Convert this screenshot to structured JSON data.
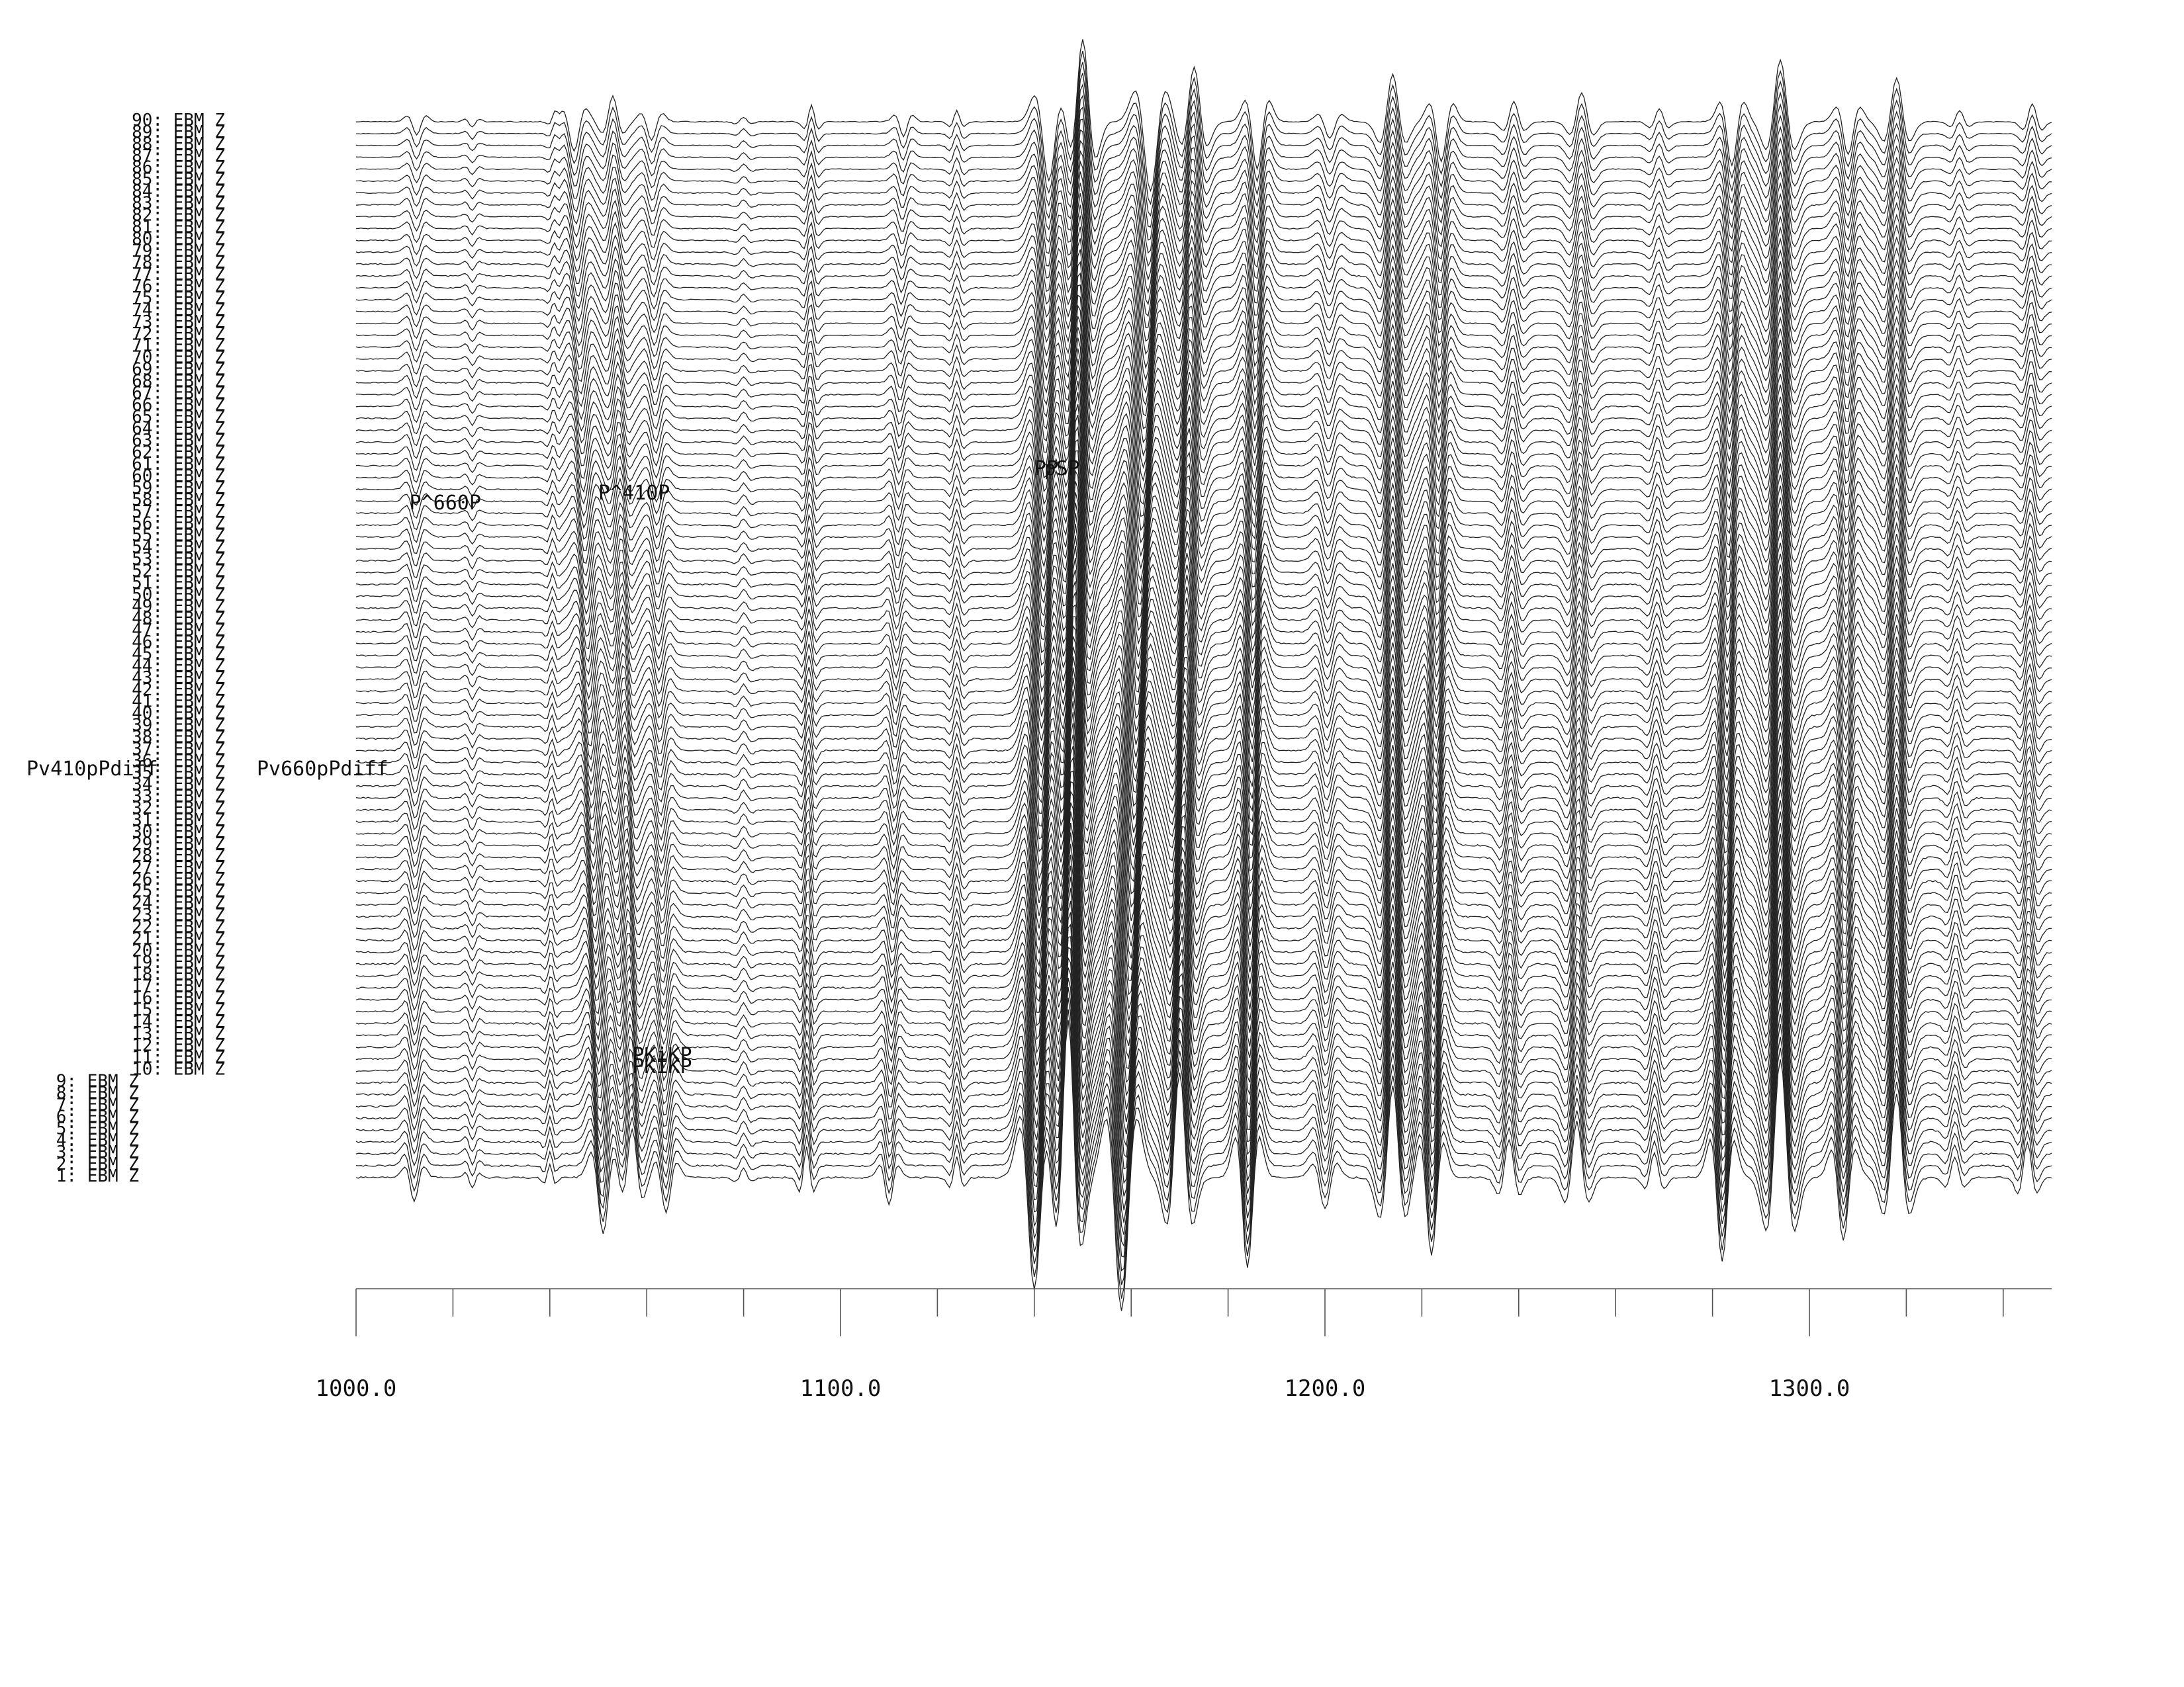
{
  "chart_data": {
    "type": "line",
    "title": "",
    "xlabel": "",
    "ylabel": "",
    "x_range": [
      1000.0,
      1350.0
    ],
    "x_tick_labels": [
      "1000.0",
      "1100.0",
      "1200.0",
      "1300.0"
    ],
    "x_major_ticks": [
      1000,
      1100,
      1200,
      1300
    ],
    "x_minor_tick_step": 20,
    "grid": false,
    "legend": "none",
    "trace_count": 90,
    "trace_label_suffix": ": EBM Z",
    "trace_labels": [
      "1: EBM Z",
      "2: EBM Z",
      "3: EBM Z",
      "4: EBM Z",
      "5: EBM Z",
      "6: EBM Z",
      "7: EBM Z",
      "8: EBM Z",
      "9: EBM Z",
      "10: EBM Z",
      "11: EBM Z",
      "12: EBM Z",
      "13: EBM Z",
      "14: EBM Z",
      "15: EBM Z",
      "16: EBM Z",
      "17: EBM Z",
      "18: EBM Z",
      "19: EBM Z",
      "20: EBM Z",
      "21: EBM Z",
      "22: EBM Z",
      "23: EBM Z",
      "24: EBM Z",
      "25: EBM Z",
      "26: EBM Z",
      "27: EBM Z",
      "28: EBM Z",
      "29: EBM Z",
      "30: EBM Z",
      "31: EBM Z",
      "32: EBM Z",
      "33: EBM Z",
      "34: EBM Z",
      "35: EBM Z",
      "36: EBM Z",
      "37: EBM Z",
      "38: EBM Z",
      "39: EBM Z",
      "40: EBM Z",
      "41: EBM Z",
      "42: EBM Z",
      "43: EBM Z",
      "44: EBM Z",
      "45: EBM Z",
      "46: EBM Z",
      "47: EBM Z",
      "48: EBM Z",
      "49: EBM Z",
      "50: EBM Z",
      "51: EBM Z",
      "52: EBM Z",
      "53: EBM Z",
      "54: EBM Z",
      "55: EBM Z",
      "56: EBM Z",
      "57: EBM Z",
      "58: EBM Z",
      "59: EBM Z",
      "60: EBM Z",
      "61: EBM Z",
      "62: EBM Z",
      "63: EBM Z",
      "64: EBM Z",
      "65: EBM Z",
      "66: EBM Z",
      "67: EBM Z",
      "68: EBM Z",
      "69: EBM Z",
      "70: EBM Z",
      "71: EBM Z",
      "72: EBM Z",
      "73: EBM Z",
      "74: EBM Z",
      "75: EBM Z",
      "76: EBM Z",
      "77: EBM Z",
      "78: EBM Z",
      "79: EBM Z",
      "80: EBM Z",
      "81: EBM Z",
      "82: EBM Z",
      "83: EBM Z",
      "84: EBM Z",
      "85: EBM Z",
      "86: EBM Z",
      "87: EBM Z",
      "88: EBM Z",
      "89: EBM Z",
      "90: EBM Z"
    ],
    "phase_picks": [
      {
        "label": "P^660P",
        "time": 1011
      },
      {
        "label": "P^410P",
        "time": 1050
      },
      {
        "label": "PP",
        "time": 1140
      },
      {
        "label": "pSP",
        "time": 1142
      },
      {
        "label": "PKiKP",
        "time": 1057
      },
      {
        "label": "PKIKP",
        "time": 1057
      },
      {
        "label": "Pv410pPdiff",
        "time": 932
      },
      {
        "label": "Pv660pPdiff",
        "time": 977
      }
    ],
    "wavelets": [
      {
        "t0": 1012,
        "dt": 0.5,
        "amp": -0.7,
        "w": 1.6
      },
      {
        "t0": 1024,
        "dt": 0,
        "amp": -0.3,
        "w": 1.2
      },
      {
        "t0": 1040,
        "dt": 1.0,
        "amp": 0.4,
        "w": 1.0
      },
      {
        "t0": 1051,
        "dt": -6,
        "amp": -1.6,
        "w": 2.0
      },
      {
        "t0": 1057,
        "dt": -4,
        "amp": 1.4,
        "w": 1.8
      },
      {
        "t0": 1064,
        "dt": -3,
        "amp": -1.0,
        "w": 1.8
      },
      {
        "t0": 1080,
        "dt": 0,
        "amp": 0.25,
        "w": 1.4
      },
      {
        "t0": 1093,
        "dt": 1,
        "amp": 0.9,
        "w": 1.2
      },
      {
        "t0": 1110,
        "dt": 3,
        "amp": -0.8,
        "w": 1.5
      },
      {
        "t0": 1124,
        "dt": 0,
        "amp": 0.6,
        "w": 1.2
      },
      {
        "t0": 1140,
        "dt": 3,
        "amp": -3.2,
        "w": 2.4
      },
      {
        "t0": 1147,
        "dt": 3,
        "amp": 4.5,
        "w": 2.2
      },
      {
        "t0": 1158,
        "dt": 6,
        "amp": -3.8,
        "w": 2.6
      },
      {
        "t0": 1170,
        "dt": 3,
        "amp": 3.0,
        "w": 2.2
      },
      {
        "t0": 1184,
        "dt": 2,
        "amp": -2.6,
        "w": 2.0
      },
      {
        "t0": 1200,
        "dt": 1,
        "amp": -0.9,
        "w": 2.0
      },
      {
        "t0": 1214,
        "dt": 0,
        "amp": 2.6,
        "w": 2.2
      },
      {
        "t0": 1222,
        "dt": 2,
        "amp": -2.2,
        "w": 2.0
      },
      {
        "t0": 1238,
        "dt": 1,
        "amp": 1.1,
        "w": 1.8
      },
      {
        "t0": 1252,
        "dt": 1,
        "amp": 1.6,
        "w": 2.0
      },
      {
        "t0": 1268,
        "dt": 1,
        "amp": 0.7,
        "w": 1.6
      },
      {
        "t0": 1282,
        "dt": 2,
        "amp": -2.4,
        "w": 2.0
      },
      {
        "t0": 1294,
        "dt": 0,
        "amp": 3.4,
        "w": 2.4
      },
      {
        "t0": 1307,
        "dt": 1,
        "amp": -1.8,
        "w": 2.0
      },
      {
        "t0": 1318,
        "dt": 0,
        "amp": 2.4,
        "w": 2.2
      },
      {
        "t0": 1330,
        "dt": 1,
        "amp": 0.6,
        "w": 1.6
      },
      {
        "t0": 1345,
        "dt": 1,
        "amp": 1.0,
        "w": 1.6
      }
    ]
  }
}
